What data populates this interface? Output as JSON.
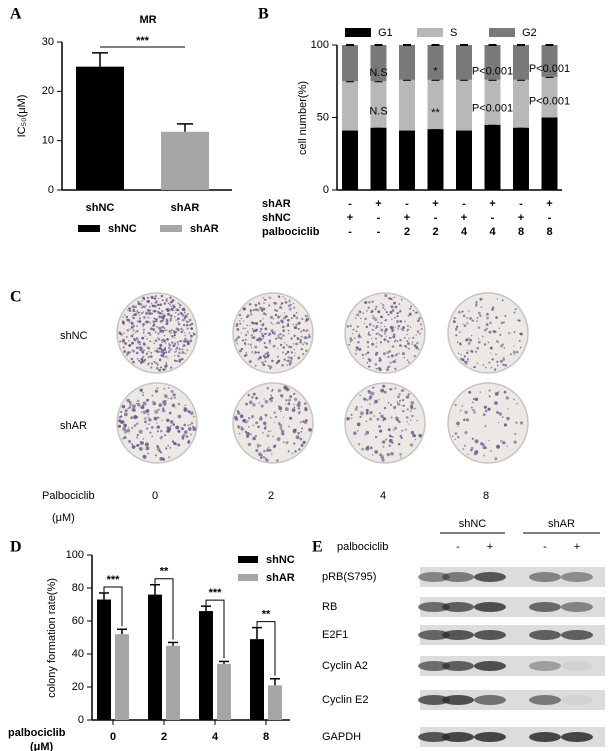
{
  "chart_data": [
    {
      "panel": "A",
      "type": "bar",
      "title": "MR",
      "y_label": "IC₅₀(μM)",
      "categories": [
        "shNC",
        "shAR"
      ],
      "values": [
        25,
        11.8
      ],
      "errors": [
        2.8,
        1.6
      ],
      "colors": [
        "#000000",
        "#a6a6a6"
      ],
      "ylim": [
        0,
        30
      ],
      "yticks": [
        0,
        10,
        20,
        30
      ],
      "significance": "***",
      "legend": "bottom"
    },
    {
      "panel": "B",
      "type": "stacked_bar",
      "y_label": "cell number(%)",
      "ylim": [
        0,
        100
      ],
      "yticks": [
        0,
        50,
        100
      ],
      "legend": "top",
      "series": [
        {
          "name": "G1",
          "color": "#000000",
          "values": [
            41,
            43,
            41,
            42,
            41,
            45,
            43,
            50
          ],
          "annotations": [
            null,
            null,
            null,
            null,
            null,
            null,
            null,
            null
          ]
        },
        {
          "name": "S",
          "color": "#b8b8b8",
          "values": [
            34,
            32,
            35,
            34,
            35,
            31,
            33,
            28
          ],
          "annotations": [
            null,
            "N.S",
            null,
            "**",
            null,
            "P<0.001",
            null,
            "P<0.001"
          ]
        },
        {
          "name": "G2",
          "color": "#7a7a7a",
          "values": [
            25,
            25,
            24,
            24,
            24,
            24,
            24,
            22
          ],
          "annotations": [
            null,
            "N.S",
            null,
            "*",
            null,
            "P<0.001",
            null,
            "P<0.001"
          ]
        }
      ],
      "conditions": {
        "row_labels": [
          "shAR",
          "shNC",
          "palbociclib"
        ],
        "rows": [
          [
            "-",
            "+",
            "-",
            "+",
            "-",
            "+",
            "-",
            "+"
          ],
          [
            "+",
            "-",
            "+",
            "-",
            "+",
            "-",
            "+",
            "-"
          ],
          [
            "-",
            "-",
            "2",
            "2",
            "4",
            "4",
            "8",
            "8"
          ]
        ]
      }
    },
    {
      "panel": "D",
      "type": "grouped_bar",
      "y_label": "colony formation rate(%)",
      "x_label": "palbociclib",
      "x_unit": "(μM)",
      "categories": [
        "0",
        "2",
        "4",
        "8"
      ],
      "ylim": [
        0,
        100
      ],
      "yticks": [
        0,
        20,
        40,
        60,
        80,
        100
      ],
      "series": [
        {
          "name": "shNC",
          "color": "#000000",
          "values": [
            73,
            76,
            66,
            49
          ],
          "errors": [
            4,
            6,
            3,
            7
          ]
        },
        {
          "name": "shAR",
          "color": "#a6a6a6",
          "values": [
            52,
            45,
            34,
            21
          ],
          "errors": [
            3,
            2,
            1.5,
            4
          ]
        }
      ],
      "significance": [
        "***",
        "**",
        "***",
        "**"
      ],
      "legend": "top-right"
    }
  ],
  "panel_c": {
    "label": "C",
    "rows": [
      "shNC",
      "shAR"
    ],
    "x_label": "Palbociclib",
    "x_unit": "(μM)",
    "doses": [
      "0",
      "2",
      "4",
      "8"
    ]
  },
  "panel_e": {
    "label": "E",
    "groups": [
      "shNC",
      "shAR"
    ],
    "treatment": "palbociclib",
    "signs": [
      "-",
      "+",
      "-",
      "+"
    ],
    "proteins": [
      "pRB(S795)",
      "RB",
      "E2F1",
      "Cyclin A2",
      "Cyclin E2",
      "GAPDH"
    ]
  }
}
